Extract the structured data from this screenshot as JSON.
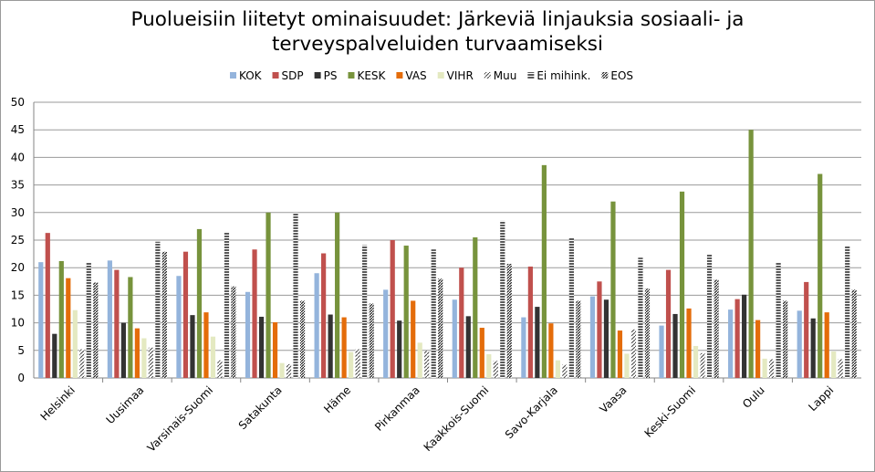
{
  "chart_data": {
    "type": "bar",
    "title_line1": "Puolueisiin liitetyt ominaisuudet: Järkeviä linjauksia sosiaali- ja",
    "title_line2": "terveyspalveluiden turvaamiseksi",
    "xlabel": "",
    "ylabel": "",
    "ylim": [
      0,
      50
    ],
    "yticks": [
      0,
      5,
      10,
      15,
      20,
      25,
      30,
      35,
      40,
      45,
      50
    ],
    "grid": true,
    "legend_position": "top",
    "categories": [
      "Helsinki",
      "Uusimaa",
      "Varsinais-Suomi",
      "Satakunta",
      "Häme",
      "Pirkanmaa",
      "Kaakkois-Suomi",
      "Savo-Karjala",
      "Vaasa",
      "Keski-Suomi",
      "Oulu",
      "Lappi"
    ],
    "series": [
      {
        "name": "KOK",
        "color": "#94b4dc",
        "pattern": "solid",
        "values": [
          21,
          21.3,
          18.5,
          15.6,
          19,
          16,
          14.2,
          11,
          14.8,
          9.5,
          12.4,
          12.2
        ]
      },
      {
        "name": "SDP",
        "color": "#c0504d",
        "pattern": "solid",
        "values": [
          26.3,
          19.6,
          22.9,
          23.3,
          22.6,
          25,
          20,
          20.2,
          17.5,
          19.6,
          14.3,
          17.4
        ]
      },
      {
        "name": "PS",
        "color": "#333333",
        "pattern": "solid",
        "values": [
          8,
          10,
          11.4,
          11.1,
          11.5,
          10.4,
          11.2,
          12.9,
          14.2,
          11.6,
          15.1,
          10.8
        ]
      },
      {
        "name": "KESK",
        "color": "#77933c",
        "pattern": "solid",
        "values": [
          21.2,
          18.3,
          27,
          30,
          30,
          24,
          25.5,
          38.6,
          32,
          33.8,
          45,
          37
        ]
      },
      {
        "name": "VAS",
        "color": "#e46c0a",
        "pattern": "solid",
        "values": [
          18.1,
          9,
          11.9,
          10.1,
          11,
          14,
          9.1,
          9.9,
          8.6,
          12.6,
          10.5,
          11.9
        ]
      },
      {
        "name": "VIHR",
        "color": "#e4e9c1",
        "pattern": "solid",
        "values": [
          12.3,
          7.2,
          7.5,
          2.7,
          4.7,
          6.4,
          4.3,
          3.2,
          4.4,
          5.8,
          3.5,
          4.8
        ]
      },
      {
        "name": "Muu",
        "color": "#444444",
        "pattern": "diagonal",
        "values": [
          5.2,
          5.5,
          3.2,
          2.5,
          5.2,
          4.9,
          3.1,
          2.4,
          8.8,
          4.5,
          3.4,
          3.4
        ]
      },
      {
        "name": "Ei mihink.",
        "color": "#333333",
        "pattern": "horizontal",
        "values": [
          20.9,
          24.7,
          26.5,
          30,
          24.1,
          23.3,
          28.5,
          25.4,
          21.8,
          22.5,
          21,
          24
        ]
      },
      {
        "name": "EOS",
        "color": "#333333",
        "pattern": "diagonal-dense",
        "values": [
          17.3,
          22.9,
          16.6,
          14,
          13.5,
          18,
          20.7,
          14,
          16.2,
          17.8,
          14,
          16
        ]
      }
    ]
  }
}
